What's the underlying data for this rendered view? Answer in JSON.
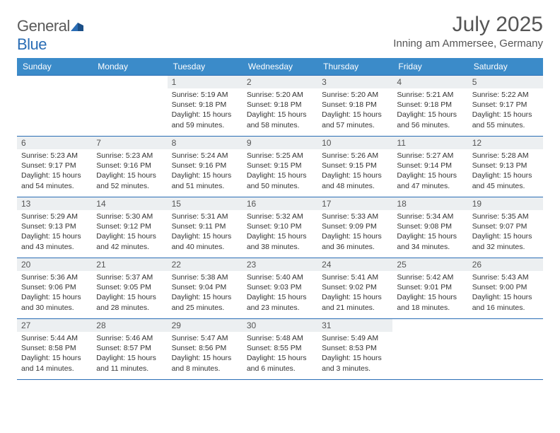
{
  "brand": {
    "name_a": "General",
    "name_b": "Blue"
  },
  "title": "July 2025",
  "location": "Inning am Ammersee, Germany",
  "colors": {
    "header_bg": "#3b8bc9",
    "border": "#2a6db5",
    "daynum_bg": "#eceff1",
    "text": "#555555",
    "body_text": "#333333",
    "brand_gray": "#5a5a5a",
    "brand_blue": "#2a6db5"
  },
  "weekdays": [
    "Sunday",
    "Monday",
    "Tuesday",
    "Wednesday",
    "Thursday",
    "Friday",
    "Saturday"
  ],
  "weeks": [
    [
      null,
      null,
      {
        "n": "1",
        "sr": "5:19 AM",
        "ss": "9:18 PM",
        "dl": "15 hours and 59 minutes."
      },
      {
        "n": "2",
        "sr": "5:20 AM",
        "ss": "9:18 PM",
        "dl": "15 hours and 58 minutes."
      },
      {
        "n": "3",
        "sr": "5:20 AM",
        "ss": "9:18 PM",
        "dl": "15 hours and 57 minutes."
      },
      {
        "n": "4",
        "sr": "5:21 AM",
        "ss": "9:18 PM",
        "dl": "15 hours and 56 minutes."
      },
      {
        "n": "5",
        "sr": "5:22 AM",
        "ss": "9:17 PM",
        "dl": "15 hours and 55 minutes."
      }
    ],
    [
      {
        "n": "6",
        "sr": "5:23 AM",
        "ss": "9:17 PM",
        "dl": "15 hours and 54 minutes."
      },
      {
        "n": "7",
        "sr": "5:23 AM",
        "ss": "9:16 PM",
        "dl": "15 hours and 52 minutes."
      },
      {
        "n": "8",
        "sr": "5:24 AM",
        "ss": "9:16 PM",
        "dl": "15 hours and 51 minutes."
      },
      {
        "n": "9",
        "sr": "5:25 AM",
        "ss": "9:15 PM",
        "dl": "15 hours and 50 minutes."
      },
      {
        "n": "10",
        "sr": "5:26 AM",
        "ss": "9:15 PM",
        "dl": "15 hours and 48 minutes."
      },
      {
        "n": "11",
        "sr": "5:27 AM",
        "ss": "9:14 PM",
        "dl": "15 hours and 47 minutes."
      },
      {
        "n": "12",
        "sr": "5:28 AM",
        "ss": "9:13 PM",
        "dl": "15 hours and 45 minutes."
      }
    ],
    [
      {
        "n": "13",
        "sr": "5:29 AM",
        "ss": "9:13 PM",
        "dl": "15 hours and 43 minutes."
      },
      {
        "n": "14",
        "sr": "5:30 AM",
        "ss": "9:12 PM",
        "dl": "15 hours and 42 minutes."
      },
      {
        "n": "15",
        "sr": "5:31 AM",
        "ss": "9:11 PM",
        "dl": "15 hours and 40 minutes."
      },
      {
        "n": "16",
        "sr": "5:32 AM",
        "ss": "9:10 PM",
        "dl": "15 hours and 38 minutes."
      },
      {
        "n": "17",
        "sr": "5:33 AM",
        "ss": "9:09 PM",
        "dl": "15 hours and 36 minutes."
      },
      {
        "n": "18",
        "sr": "5:34 AM",
        "ss": "9:08 PM",
        "dl": "15 hours and 34 minutes."
      },
      {
        "n": "19",
        "sr": "5:35 AM",
        "ss": "9:07 PM",
        "dl": "15 hours and 32 minutes."
      }
    ],
    [
      {
        "n": "20",
        "sr": "5:36 AM",
        "ss": "9:06 PM",
        "dl": "15 hours and 30 minutes."
      },
      {
        "n": "21",
        "sr": "5:37 AM",
        "ss": "9:05 PM",
        "dl": "15 hours and 28 minutes."
      },
      {
        "n": "22",
        "sr": "5:38 AM",
        "ss": "9:04 PM",
        "dl": "15 hours and 25 minutes."
      },
      {
        "n": "23",
        "sr": "5:40 AM",
        "ss": "9:03 PM",
        "dl": "15 hours and 23 minutes."
      },
      {
        "n": "24",
        "sr": "5:41 AM",
        "ss": "9:02 PM",
        "dl": "15 hours and 21 minutes."
      },
      {
        "n": "25",
        "sr": "5:42 AM",
        "ss": "9:01 PM",
        "dl": "15 hours and 18 minutes."
      },
      {
        "n": "26",
        "sr": "5:43 AM",
        "ss": "9:00 PM",
        "dl": "15 hours and 16 minutes."
      }
    ],
    [
      {
        "n": "27",
        "sr": "5:44 AM",
        "ss": "8:58 PM",
        "dl": "15 hours and 14 minutes."
      },
      {
        "n": "28",
        "sr": "5:46 AM",
        "ss": "8:57 PM",
        "dl": "15 hours and 11 minutes."
      },
      {
        "n": "29",
        "sr": "5:47 AM",
        "ss": "8:56 PM",
        "dl": "15 hours and 8 minutes."
      },
      {
        "n": "30",
        "sr": "5:48 AM",
        "ss": "8:55 PM",
        "dl": "15 hours and 6 minutes."
      },
      {
        "n": "31",
        "sr": "5:49 AM",
        "ss": "8:53 PM",
        "dl": "15 hours and 3 minutes."
      },
      null,
      null
    ]
  ],
  "labels": {
    "sunrise": "Sunrise:",
    "sunset": "Sunset:",
    "daylight": "Daylight:"
  }
}
